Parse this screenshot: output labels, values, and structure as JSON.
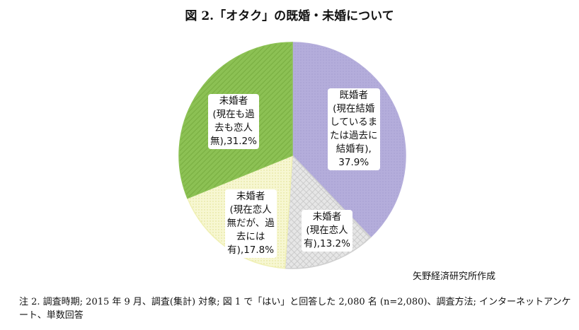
{
  "title": "図 2.「オタク」の既婚・未婚について",
  "source": "矢野経済研究所作成",
  "note": "注 2. 調査時期; 2015 年 9 月、調査(集計) 対象; 図 1 で「はい」と回答した 2,080 名 (n=2,080)、調査方法; インターネットアンケート、単数回答",
  "colors": {
    "married": "#b4addb",
    "never": "#8cc154",
    "single_past": "#f0f0b4",
    "has_partner": "#cfcfcf"
  },
  "chart_data": {
    "type": "pie",
    "title": "図 2.「オタク」の既婚・未婚について",
    "slices": [
      {
        "key": "married",
        "lines": [
          "既婚者",
          "(現在結婚",
          "しているま",
          "たは過去に",
          "結婚有),",
          "37.9%"
        ],
        "value": 37.9
      },
      {
        "key": "has_partner",
        "lines": [
          "未婚者",
          "(現在恋人",
          "有),13.2%"
        ],
        "value": 13.2
      },
      {
        "key": "single_past",
        "lines": [
          "未婚者",
          "(現在恋人",
          "無だが、過",
          "去には",
          "有),17.8%"
        ],
        "value": 17.8
      },
      {
        "key": "never",
        "lines": [
          "未婚者",
          "(現在も過",
          "去も恋人",
          "無),31.2%"
        ],
        "value": 31.2
      }
    ]
  }
}
